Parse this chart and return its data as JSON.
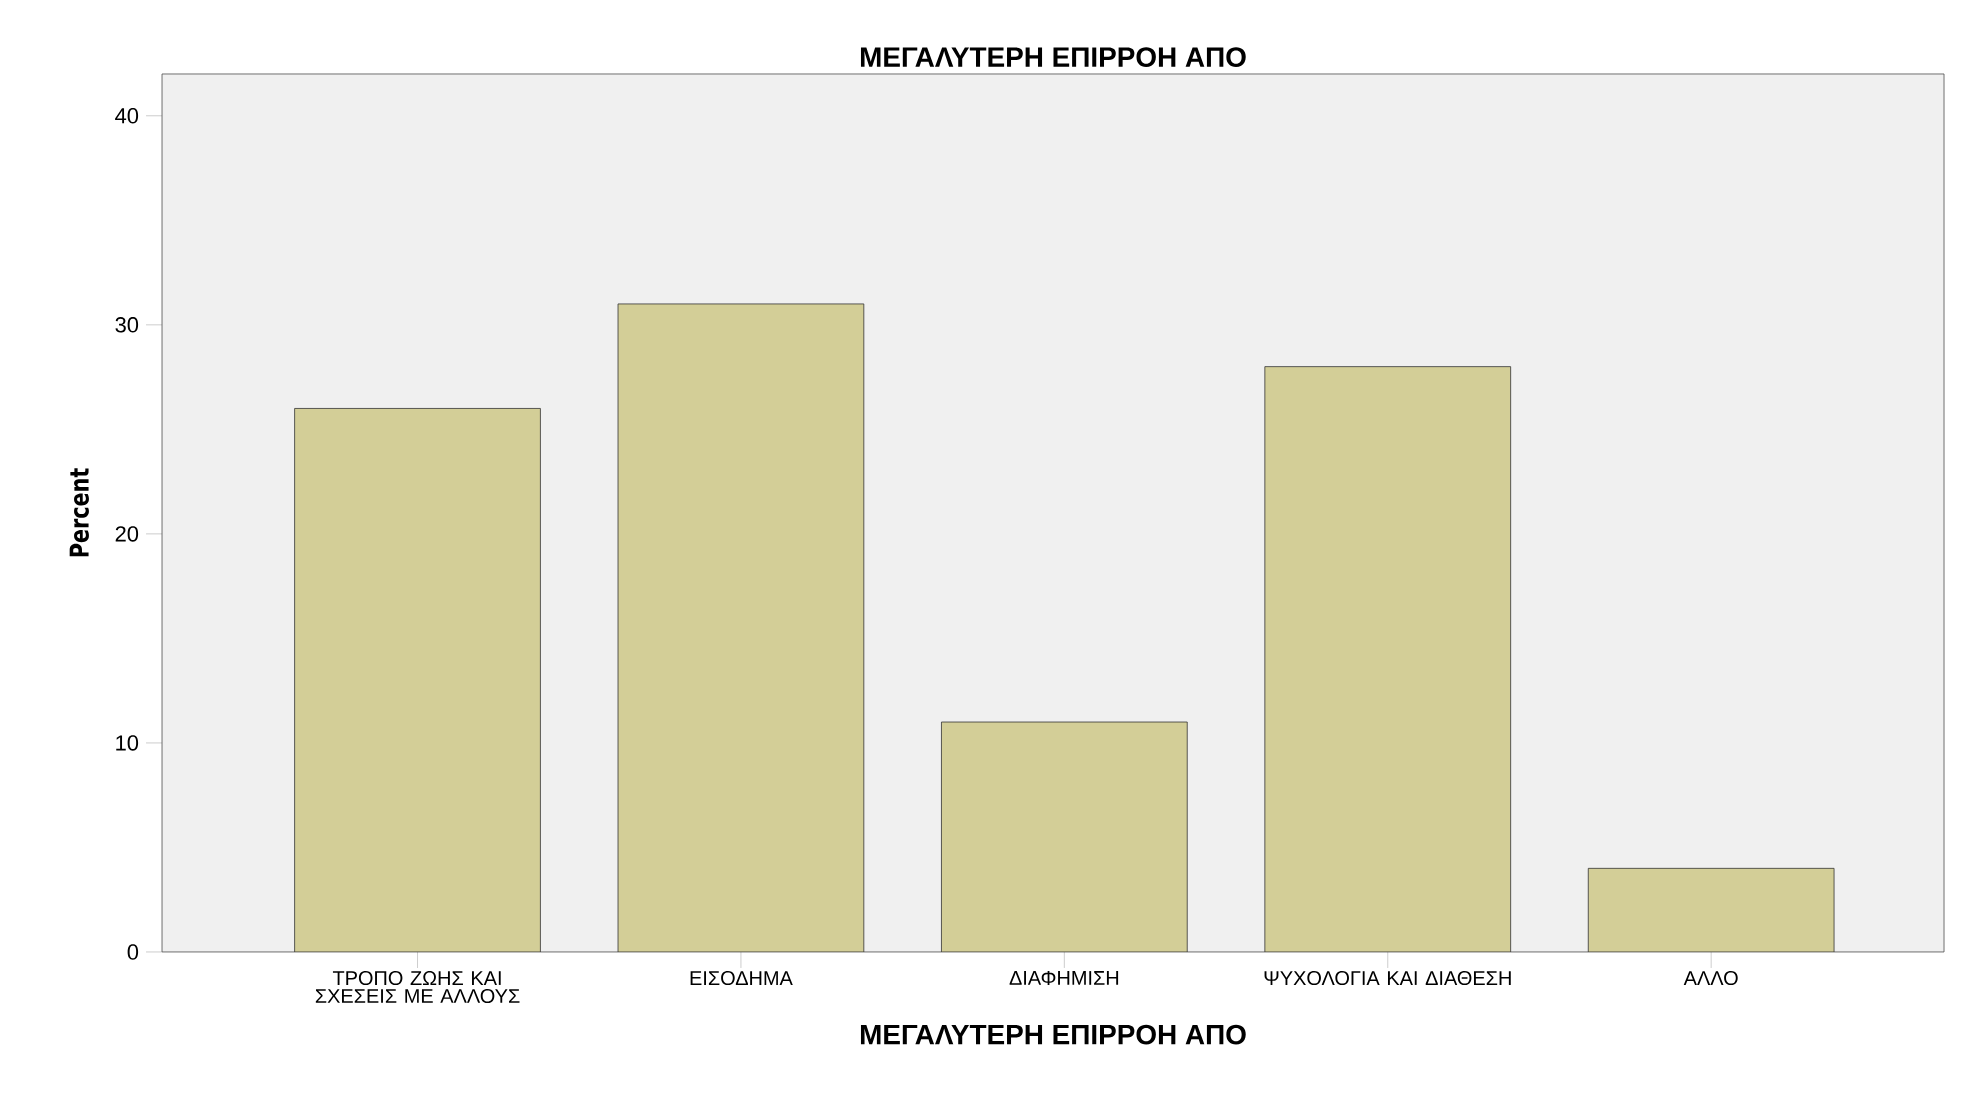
{
  "chart_data": {
    "type": "bar",
    "title": "ΜΕΓΑΛΥΤΕΡΗ ΕΠΙΡΡΟΗ ΑΠΟ",
    "xlabel": "ΜΕΓΑΛΥΤΕΡΗ ΕΠΙΡΡΟΗ ΑΠΟ",
    "ylabel": "Percent",
    "categories": [
      "ΤΡΟΠΟ ΖΩΗΣ ΚΑΙ ΣΧΕΣΕΙΣ ΜΕ ΑΛΛΟΥΣ",
      "ΕΙΣΟΔΗΜΑ",
      "ΔΙΑΦΗΜΙΣΗ",
      "ΨΥΧΟΛΟΓΙΑ ΚΑΙ ΔΙΑΘΕΣΗ",
      "ΑΛΛΟ"
    ],
    "values": [
      26,
      31,
      11,
      28,
      4
    ],
    "color": "#d3ce97",
    "ylim": [
      0,
      42
    ],
    "yticks": [
      0,
      10,
      20,
      30,
      40
    ],
    "grid": false
  }
}
